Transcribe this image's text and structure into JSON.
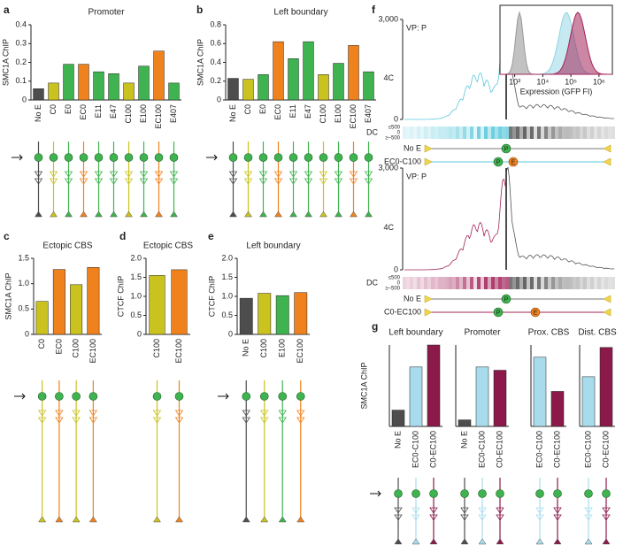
{
  "chart_data": [
    {
      "type": "bar",
      "panel": "a",
      "title": "Promoter",
      "y_label": "SMC1A ChIP",
      "categories": [
        "No E",
        "C0",
        "E0",
        "EC0",
        "E11",
        "E47",
        "C100",
        "E100",
        "EC100",
        "E407"
      ],
      "values": [
        0.06,
        0.09,
        0.19,
        0.19,
        0.15,
        0.14,
        0.09,
        0.18,
        0.26,
        0.09
      ],
      "colors": [
        "#4d4d4d",
        "#c9c21f",
        "#3fb34f",
        "#f0821e",
        "#3fb34f",
        "#3fb34f",
        "#c9c21f",
        "#3fb34f",
        "#f0821e",
        "#3fb34f"
      ],
      "ylim": [
        0,
        0.4
      ],
      "yticks": [
        0,
        0.1,
        0.2,
        0.3,
        0.4
      ]
    },
    {
      "type": "bar",
      "panel": "b",
      "title": "Left boundary",
      "y_label": "SMC1A ChIP",
      "categories": [
        "No E",
        "C0",
        "E0",
        "EC0",
        "E11",
        "E47",
        "C100",
        "E100",
        "EC100",
        "E407"
      ],
      "values": [
        0.23,
        0.22,
        0.27,
        0.62,
        0.44,
        0.62,
        0.27,
        0.39,
        0.58,
        0.3
      ],
      "colors": [
        "#4d4d4d",
        "#c9c21f",
        "#3fb34f",
        "#f0821e",
        "#3fb34f",
        "#3fb34f",
        "#c9c21f",
        "#3fb34f",
        "#f0821e",
        "#3fb34f"
      ],
      "ylim": [
        0,
        0.8
      ],
      "yticks": [
        0,
        0.2,
        0.4,
        0.6,
        0.8
      ]
    },
    {
      "type": "bar",
      "panel": "c",
      "title": "Ectopic CBS",
      "y_label": "SMC1A ChIP",
      "categories": [
        "C0",
        "EC0",
        "C100",
        "EC100"
      ],
      "values": [
        0.65,
        1.28,
        0.98,
        1.32
      ],
      "colors": [
        "#c9c21f",
        "#f0821e",
        "#c9c21f",
        "#f0821e"
      ],
      "ylim": [
        0,
        1.5
      ],
      "yticks": [
        0,
        0.5,
        {
          "value": 1,
          "label": "1.0"
        },
        1.5
      ]
    },
    {
      "type": "bar",
      "panel": "d",
      "title": "Ectopic CBS",
      "y_label": "CTCF ChIP",
      "categories": [
        "C100",
        "EC100"
      ],
      "values": [
        1.55,
        1.7
      ],
      "colors": [
        "#c9c21f",
        "#f0821e"
      ],
      "ylim": [
        0,
        2
      ],
      "yticks": [
        0,
        0.5,
        {
          "value": 1,
          "label": "1.0"
        },
        1.5,
        {
          "value": 2,
          "label": "2.0"
        }
      ]
    },
    {
      "type": "bar",
      "panel": "e",
      "title": "Left boundary",
      "y_label": "CTCF ChIP",
      "categories": [
        "No E",
        "C100",
        "E100",
        "EC100"
      ],
      "values": [
        0.95,
        1.08,
        1.02,
        1.1
      ],
      "colors": [
        "#4d4d4d",
        "#c9c21f",
        "#3fb34f",
        "#f0821e"
      ],
      "ylim": [
        0,
        2
      ],
      "yticks": [
        0,
        0.5,
        {
          "value": 1,
          "label": "1.0"
        },
        1.5,
        {
          "value": 2,
          "label": "2.0"
        }
      ]
    },
    {
      "type": "track",
      "panel": "f",
      "promoter_label": "P",
      "enhancer_label": "E",
      "tracks": [
        {
          "viewpoint": "VP: P",
          "y_label": "4C",
          "color": "#5bc8dc",
          "ylim": [
            0,
            3000
          ],
          "yticks": [
            0,
            {
              "value": 3000,
              "label": "3,000"
            }
          ],
          "dc_label": "DC",
          "dc_ticks": [
            {
              "value": 500,
              "label": "≤500"
            },
            0,
            {
              "value": -500,
              "label": "≥–500"
            }
          ],
          "rows": [
            {
              "name": "No E",
              "color": "#777777"
            },
            {
              "name": "EC0-C100",
              "color": "#5bc8dc"
            }
          ]
        },
        {
          "viewpoint": "VP: P",
          "y_label": "4C",
          "color": "#a3245a",
          "ylim": [
            0,
            3000
          ],
          "yticks": [
            0,
            {
              "value": 3000,
              "label": "3,000"
            }
          ],
          "dc_label": "DC",
          "dc_ticks": [
            {
              "value": 500,
              "label": "≤500"
            },
            0,
            {
              "value": -500,
              "label": "≥–500"
            }
          ],
          "rows": [
            {
              "name": "No E",
              "color": "#777777"
            },
            {
              "name": "C0-EC100",
              "color": "#a3245a"
            }
          ]
        }
      ],
      "inset": {
        "x_label": "Expression (GFP FI)",
        "log": true,
        "xlim": [
          300,
          3000000
        ],
        "xticks": [
          {
            "value": 1000,
            "label": "10³"
          },
          {
            "value": 10000,
            "label": "10⁴"
          },
          {
            "value": 100000,
            "label": "10⁵"
          },
          {
            "value": 1000000,
            "label": "10⁶"
          }
        ]
      }
    },
    {
      "type": "bar",
      "panel": "g",
      "title": "Left boundary",
      "y_label": "SMC1A ChIP",
      "categories": [
        "No E",
        "EC0-C100",
        "C0-EC100"
      ],
      "values": [
        0.2,
        0.73,
        1.0
      ],
      "colors": [
        "#4d4d4d",
        "#a8dcec",
        "#8b1a4a"
      ],
      "ylim": [
        0,
        1
      ],
      "yticks": []
    },
    {
      "type": "bar",
      "title": "Promoter",
      "categories": [
        "No E",
        "EC0-C100",
        "C0-EC100"
      ],
      "values": [
        0.08,
        0.73,
        0.69
      ],
      "colors": [
        "#4d4d4d",
        "#a8dcec",
        "#8b1a4a"
      ],
      "ylim": [
        0,
        1
      ],
      "yticks": []
    },
    {
      "type": "bar",
      "title": "Prox. CBS",
      "categories": [
        "EC0-C100",
        "C0-EC100"
      ],
      "values": [
        0.85,
        0.43
      ],
      "colors": [
        "#a8dcec",
        "#8b1a4a"
      ],
      "ylim": [
        0,
        1
      ],
      "yticks": []
    },
    {
      "type": "bar",
      "title": "Dist. CBS",
      "categories": [
        "EC0-C100",
        "C0-EC100"
      ],
      "values": [
        0.61,
        0.97
      ],
      "colors": [
        "#a8dcec",
        "#8b1a4a"
      ],
      "ylim": [
        0,
        1
      ],
      "yticks": []
    }
  ]
}
